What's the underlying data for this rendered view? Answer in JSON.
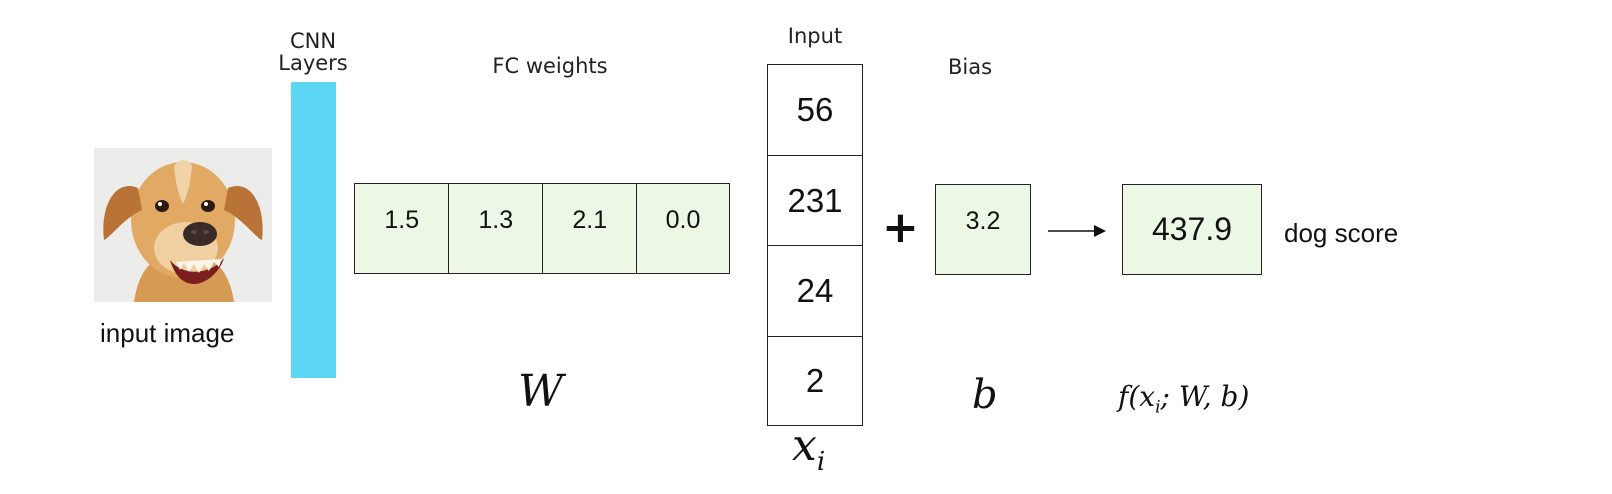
{
  "labels": {
    "cnn": "CNN Layers",
    "fc_weights": "FC weights",
    "input": "Input",
    "bias": "Bias",
    "input_image": "input image",
    "dog_score": "dog score",
    "plus": "+"
  },
  "weights": [
    "1.5",
    "1.3",
    "2.1",
    "0.0"
  ],
  "input_vector": [
    "56",
    "231",
    "24",
    "2"
  ],
  "bias_value": "3.2",
  "score_value": "437.9",
  "math": {
    "W": "W",
    "x_base": "x",
    "x_sub": "i",
    "b": "b",
    "f": "f(x",
    "f_sub": "i",
    "f_rest": "; W, b)"
  },
  "colors": {
    "cnn_bar": "#5dd6f4",
    "cell_fill": "#ebf8e6",
    "stroke": "#222222"
  },
  "icons": {
    "input_image": "dog-photo-icon",
    "arrow": "arrow-right-icon"
  }
}
